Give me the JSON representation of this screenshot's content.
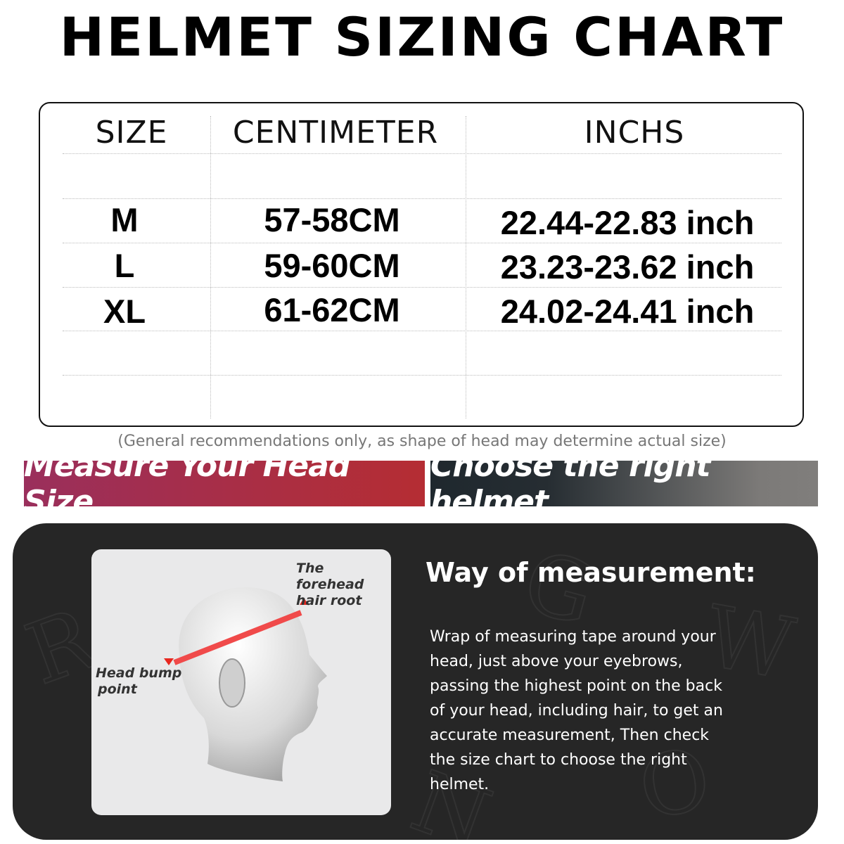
{
  "title": "HELMET SIZING CHART",
  "table": {
    "headers": [
      "SIZE",
      "CENTIMETER",
      "INCHS"
    ],
    "rows": [
      {
        "size": "M",
        "cm": "57-58CM",
        "inch": "22.44-22.83 inch"
      },
      {
        "size": "L",
        "cm": "59-60CM",
        "inch": "23.23-23.62 inch"
      },
      {
        "size": "XL",
        "cm": "61-62CM",
        "inch": "24.02-24.41 inch"
      }
    ]
  },
  "note": "(General recommendations only, as shape of head may determine actual size)",
  "banners": {
    "left": "Measure Your Head Size",
    "right": "Choose the right helmet"
  },
  "illustration": {
    "label_forehead": "The forehead\nhair root",
    "label_forehead_1": "The forehead",
    "label_forehead_2": "hair root",
    "label_bump_1": "Head bump",
    "label_bump_2": "point"
  },
  "measurement": {
    "title": "Way of measurement:",
    "text": "Wrap of measuring tape around your head, just above your eyebrows, passing the highest point on the back of your head, including hair, to get an accurate measurement, Then check the size chart to choose the right helmet."
  },
  "colors": {
    "banner_left": "#a82e48",
    "banner_right": "#262d32",
    "tape": "#f04a4a",
    "dark_panel": "#262626"
  }
}
